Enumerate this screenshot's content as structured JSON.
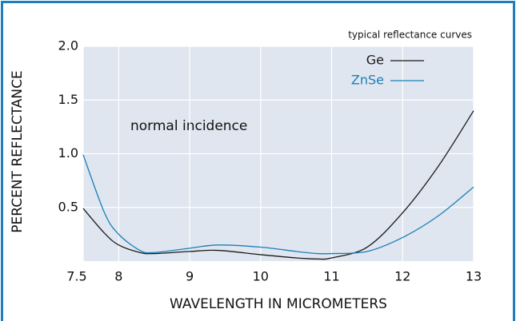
{
  "chart_data": {
    "type": "line",
    "subtitle": "typical reflectance curves",
    "annotation": "normal incidence",
    "xlabel": "WAVELENGTH IN MICROMETERS",
    "ylabel": "PERCENT REFLECTANCE",
    "x": [
      7.5,
      7.8,
      8,
      8.3,
      8.5,
      9,
      9.4,
      10,
      10.5,
      10.8,
      11,
      11.5,
      12,
      12.5,
      13
    ],
    "series": [
      {
        "name": "Ge",
        "color": "#1a1a1a",
        "values": [
          0.49,
          0.26,
          0.15,
          0.08,
          0.07,
          0.09,
          0.1,
          0.06,
          0.03,
          0.02,
          0.03,
          0.13,
          0.45,
          0.88,
          1.4
        ]
      },
      {
        "name": "ZnSe",
        "color": "#1b7fb8",
        "values": [
          0.99,
          0.45,
          0.25,
          0.1,
          0.08,
          0.12,
          0.15,
          0.13,
          0.09,
          0.07,
          0.07,
          0.09,
          0.22,
          0.42,
          0.69
        ]
      }
    ],
    "xlim": [
      7.5,
      13
    ],
    "xticks": [
      7.5,
      8,
      9,
      10,
      11,
      12,
      13
    ],
    "ylim": [
      0,
      2
    ],
    "yticks": [
      {
        "value": 0.5,
        "label": "0.5"
      },
      {
        "value": 1,
        "label": "1.0"
      },
      {
        "value": 1.5,
        "label": "1.5"
      },
      {
        "value": 2,
        "label": "2.0"
      }
    ],
    "grid": true
  }
}
